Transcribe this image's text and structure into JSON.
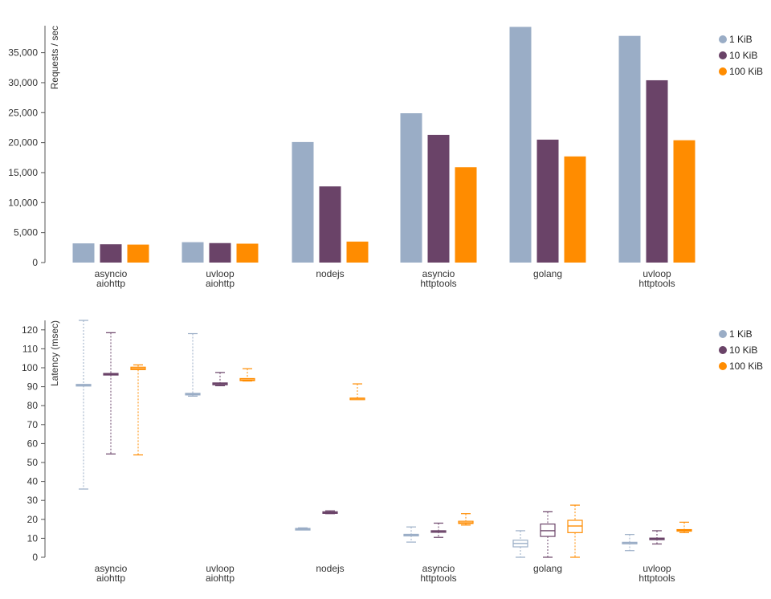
{
  "chart_data": [
    {
      "type": "bar",
      "ylabel": "Requests / sec",
      "ylim": [
        0,
        39500
      ],
      "yticks": [
        0,
        5000,
        10000,
        15000,
        20000,
        25000,
        30000,
        35000
      ],
      "ytick_labels": [
        "0",
        "5,000",
        "10,000",
        "15,000",
        "20,000",
        "25,000",
        "30,000",
        "35,000"
      ],
      "categories": [
        [
          "asyncio",
          "aiohttp"
        ],
        [
          "uvloop",
          "aiohttp"
        ],
        [
          "nodejs"
        ],
        [
          "asyncio",
          "httptools"
        ],
        [
          "golang"
        ],
        [
          "uvloop",
          "httptools"
        ]
      ],
      "series": [
        {
          "name": "1 KiB",
          "color": "#9aadc6",
          "values": [
            3200,
            3400,
            20100,
            24900,
            39300,
            37800
          ]
        },
        {
          "name": "10 KiB",
          "color": "#6a4368",
          "values": [
            3050,
            3250,
            12700,
            21300,
            20500,
            30400
          ]
        },
        {
          "name": "100 KiB",
          "color": "#ff8c00",
          "values": [
            3000,
            3150,
            3500,
            15900,
            17700,
            20400
          ]
        }
      ],
      "legend_position": "right"
    },
    {
      "type": "boxplot",
      "ylabel": "Latency (msec)",
      "ylim": [
        0,
        125
      ],
      "yticks": [
        0,
        10,
        20,
        30,
        40,
        50,
        60,
        70,
        80,
        90,
        100,
        110,
        120
      ],
      "ytick_labels": [
        "0",
        "10",
        "20",
        "30",
        "40",
        "50",
        "60",
        "70",
        "80",
        "90",
        "100",
        "110",
        "120"
      ],
      "categories": [
        [
          "asyncio",
          "aiohttp"
        ],
        [
          "uvloop",
          "aiohttp"
        ],
        [
          "nodejs"
        ],
        [
          "asyncio",
          "httptools"
        ],
        [
          "golang"
        ],
        [
          "uvloop",
          "httptools"
        ]
      ],
      "series": [
        {
          "name": "1 KiB",
          "color": "#9aadc6",
          "boxes": [
            {
              "min": 36,
              "q1": 90.5,
              "median": 90.8,
              "q3": 91.2,
              "max": 125
            },
            {
              "min": 85,
              "q1": 85.7,
              "median": 86,
              "q3": 86.5,
              "max": 118
            },
            {
              "min": 14.5,
              "q1": 14.6,
              "median": 14.8,
              "q3": 15.2,
              "max": 15.5
            },
            {
              "min": 8,
              "q1": 11.5,
              "median": 11.8,
              "q3": 12.1,
              "max": 16
            },
            {
              "min": 0,
              "q1": 5.5,
              "median": 7.3,
              "q3": 9,
              "max": 14
            },
            {
              "min": 3.5,
              "q1": 7.4,
              "median": 7.6,
              "q3": 7.9,
              "max": 12
            }
          ]
        },
        {
          "name": "10 KiB",
          "color": "#6a4368",
          "boxes": [
            {
              "min": 54.5,
              "q1": 96.3,
              "median": 96.6,
              "q3": 97,
              "max": 118.5
            },
            {
              "min": 90.5,
              "q1": 91,
              "median": 91.5,
              "q3": 92,
              "max": 97.5
            },
            {
              "min": 23,
              "q1": 23.2,
              "median": 23.5,
              "q3": 24,
              "max": 24.5
            },
            {
              "min": 10.5,
              "q1": 13.5,
              "median": 13.7,
              "q3": 14,
              "max": 18
            },
            {
              "min": 0,
              "q1": 11,
              "median": 14,
              "q3": 17.5,
              "max": 24
            },
            {
              "min": 7,
              "q1": 9.6,
              "median": 9.8,
              "q3": 10.1,
              "max": 14
            }
          ]
        },
        {
          "name": "100 KiB",
          "color": "#ff8c00",
          "boxes": [
            {
              "min": 54,
              "q1": 99,
              "median": 99.6,
              "q3": 100.3,
              "max": 101.5
            },
            {
              "min": 93,
              "q1": 93.2,
              "median": 93.6,
              "q3": 94.3,
              "max": 99.5
            },
            {
              "min": 83.5,
              "q1": 83.6,
              "median": 83.8,
              "q3": 84,
              "max": 91.5
            },
            {
              "min": 17,
              "q1": 17.8,
              "median": 18.2,
              "q3": 19,
              "max": 23
            },
            {
              "min": 0,
              "q1": 13,
              "median": 16.5,
              "q3": 19.5,
              "max": 27.5
            },
            {
              "min": 13,
              "q1": 13.8,
              "median": 14.2,
              "q3": 14.6,
              "max": 18.5
            }
          ]
        }
      ],
      "legend_position": "right"
    }
  ]
}
